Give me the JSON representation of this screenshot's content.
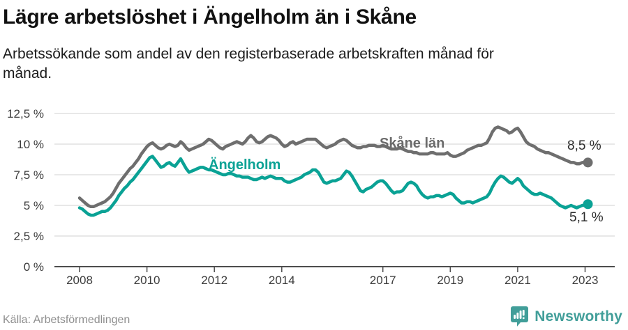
{
  "header": {
    "title": "Lägre arbetslöshet i Ängelholm än i Skåne",
    "subtitle_line1": "Arbetssökande som andel av den registerbaserade arbetskraften månad för",
    "subtitle_line2": "månad."
  },
  "footer": {
    "source": "Källa: Arbetsförmedlingen",
    "brand": "Newsworthy",
    "brand_color": "#419e99"
  },
  "chart_data": {
    "type": "line",
    "title": "Lägre arbetslöshet i Ängelholm än i Skåne",
    "subtitle": "Arbetssökande som andel av den registerbaserade arbetskraften månad för månad.",
    "xlabel": "",
    "ylabel": "",
    "ylim": [
      0,
      12.5
    ],
    "x_start_year": 2008,
    "x_step_months": 1,
    "grid": "horizontal",
    "legend_position": "inline-labels",
    "y_axis": [
      {
        "label": "12,5 %",
        "value": 12.5
      },
      {
        "label": "10 %",
        "value": 10
      },
      {
        "label": "7,5 %",
        "value": 7.5
      },
      {
        "label": "5 %",
        "value": 5
      },
      {
        "label": "2,5 %",
        "value": 2.5
      },
      {
        "label": "0 %",
        "value": 0
      }
    ],
    "x_axis": [
      {
        "label": "2008",
        "year": 2008
      },
      {
        "label": "2010",
        "year": 2010
      },
      {
        "label": "2012",
        "year": 2012
      },
      {
        "label": "2014",
        "year": 2014
      },
      {
        "label": "2017",
        "year": 2017
      },
      {
        "label": "2019",
        "year": 2019
      },
      {
        "label": "2021",
        "year": 2021
      },
      {
        "label": "2023",
        "year": 2023
      }
    ],
    "series": [
      {
        "name": "Skåne län",
        "color": "#6e6e6e",
        "end_label": "8,5 %",
        "end_value": 8.5,
        "values": [
          5.6,
          5.4,
          5.2,
          5.0,
          4.9,
          4.9,
          5.0,
          5.1,
          5.2,
          5.3,
          5.5,
          5.7,
          6.0,
          6.4,
          6.8,
          7.1,
          7.4,
          7.7,
          8.0,
          8.2,
          8.5,
          8.8,
          9.2,
          9.5,
          9.8,
          10.0,
          10.1,
          9.9,
          9.7,
          9.6,
          9.7,
          9.9,
          10.0,
          9.9,
          9.8,
          9.9,
          10.2,
          10.0,
          9.7,
          9.5,
          9.6,
          9.7,
          9.8,
          9.9,
          10.0,
          10.2,
          10.4,
          10.3,
          10.1,
          9.9,
          9.7,
          9.6,
          9.8,
          9.9,
          10.0,
          10.1,
          10.2,
          10.1,
          10.0,
          10.2,
          10.5,
          10.7,
          10.5,
          10.2,
          10.1,
          10.2,
          10.4,
          10.6,
          10.7,
          10.6,
          10.5,
          10.3,
          10.0,
          9.8,
          9.9,
          10.1,
          10.2,
          10.0,
          10.1,
          10.2,
          10.3,
          10.4,
          10.4,
          10.4,
          10.4,
          10.2,
          10.0,
          9.8,
          9.7,
          9.8,
          9.9,
          10.0,
          10.2,
          10.3,
          10.4,
          10.3,
          10.1,
          9.9,
          9.8,
          9.7,
          9.7,
          9.8,
          9.8,
          9.9,
          9.9,
          9.9,
          9.8,
          9.8,
          9.9,
          9.8,
          9.7,
          9.6,
          9.6,
          9.6,
          9.7,
          9.6,
          9.5,
          9.4,
          9.4,
          9.3,
          9.3,
          9.2,
          9.2,
          9.2,
          9.2,
          9.3,
          9.3,
          9.2,
          9.2,
          9.2,
          9.2,
          9.3,
          9.1,
          9.0,
          9.0,
          9.1,
          9.2,
          9.3,
          9.5,
          9.6,
          9.7,
          9.8,
          9.9,
          9.9,
          10.0,
          10.1,
          10.5,
          11.0,
          11.3,
          11.4,
          11.3,
          11.2,
          11.1,
          10.9,
          11.0,
          11.2,
          11.3,
          11.0,
          10.6,
          10.2,
          10.0,
          9.9,
          9.8,
          9.6,
          9.5,
          9.4,
          9.3,
          9.3,
          9.2,
          9.1,
          9.0,
          8.9,
          8.8,
          8.7,
          8.6,
          8.5,
          8.5,
          8.4,
          8.4,
          8.5,
          8.5,
          8.5
        ]
      },
      {
        "name": "Ängelholm",
        "color": "#0aa295",
        "end_label": "5,1 %",
        "end_value": 5.1,
        "values": [
          4.8,
          4.7,
          4.5,
          4.3,
          4.2,
          4.2,
          4.3,
          4.4,
          4.5,
          4.5,
          4.6,
          4.8,
          5.1,
          5.4,
          5.8,
          6.1,
          6.4,
          6.6,
          6.9,
          7.1,
          7.4,
          7.7,
          8.0,
          8.3,
          8.6,
          8.9,
          9.0,
          8.7,
          8.4,
          8.1,
          8.2,
          8.4,
          8.5,
          8.3,
          8.2,
          8.5,
          8.8,
          8.4,
          8.0,
          7.7,
          7.8,
          7.9,
          8.0,
          8.1,
          8.1,
          8.0,
          7.9,
          7.9,
          7.8,
          7.7,
          7.6,
          7.5,
          7.5,
          7.6,
          7.6,
          7.5,
          7.4,
          7.4,
          7.3,
          7.3,
          7.3,
          7.2,
          7.1,
          7.1,
          7.2,
          7.3,
          7.2,
          7.3,
          7.4,
          7.3,
          7.2,
          7.2,
          7.2,
          7.0,
          6.9,
          6.9,
          7.0,
          7.1,
          7.2,
          7.3,
          7.5,
          7.6,
          7.7,
          7.9,
          7.9,
          7.7,
          7.3,
          6.9,
          6.8,
          6.9,
          7.0,
          7.0,
          7.1,
          7.2,
          7.5,
          7.8,
          7.7,
          7.4,
          7.0,
          6.6,
          6.2,
          6.1,
          6.3,
          6.4,
          6.5,
          6.7,
          6.9,
          7.0,
          7.0,
          6.8,
          6.5,
          6.2,
          6.0,
          6.1,
          6.1,
          6.2,
          6.5,
          6.8,
          6.9,
          6.8,
          6.6,
          6.2,
          5.9,
          5.7,
          5.6,
          5.7,
          5.7,
          5.8,
          5.8,
          5.7,
          5.8,
          5.9,
          6.0,
          5.9,
          5.6,
          5.4,
          5.2,
          5.2,
          5.3,
          5.3,
          5.2,
          5.3,
          5.4,
          5.5,
          5.6,
          5.7,
          6.0,
          6.5,
          6.9,
          7.2,
          7.4,
          7.3,
          7.1,
          6.9,
          6.8,
          7.0,
          7.2,
          7.0,
          6.6,
          6.4,
          6.2,
          6.0,
          5.9,
          5.9,
          6.0,
          5.9,
          5.8,
          5.7,
          5.6,
          5.4,
          5.2,
          5.0,
          4.9,
          4.8,
          4.9,
          5.0,
          4.9,
          4.8,
          4.9,
          5.0,
          5.0,
          5.1
        ]
      }
    ],
    "colors": {
      "grid": "#dadada",
      "axis": "#4d4d4d",
      "tick_text": "#3c3c3c"
    }
  }
}
